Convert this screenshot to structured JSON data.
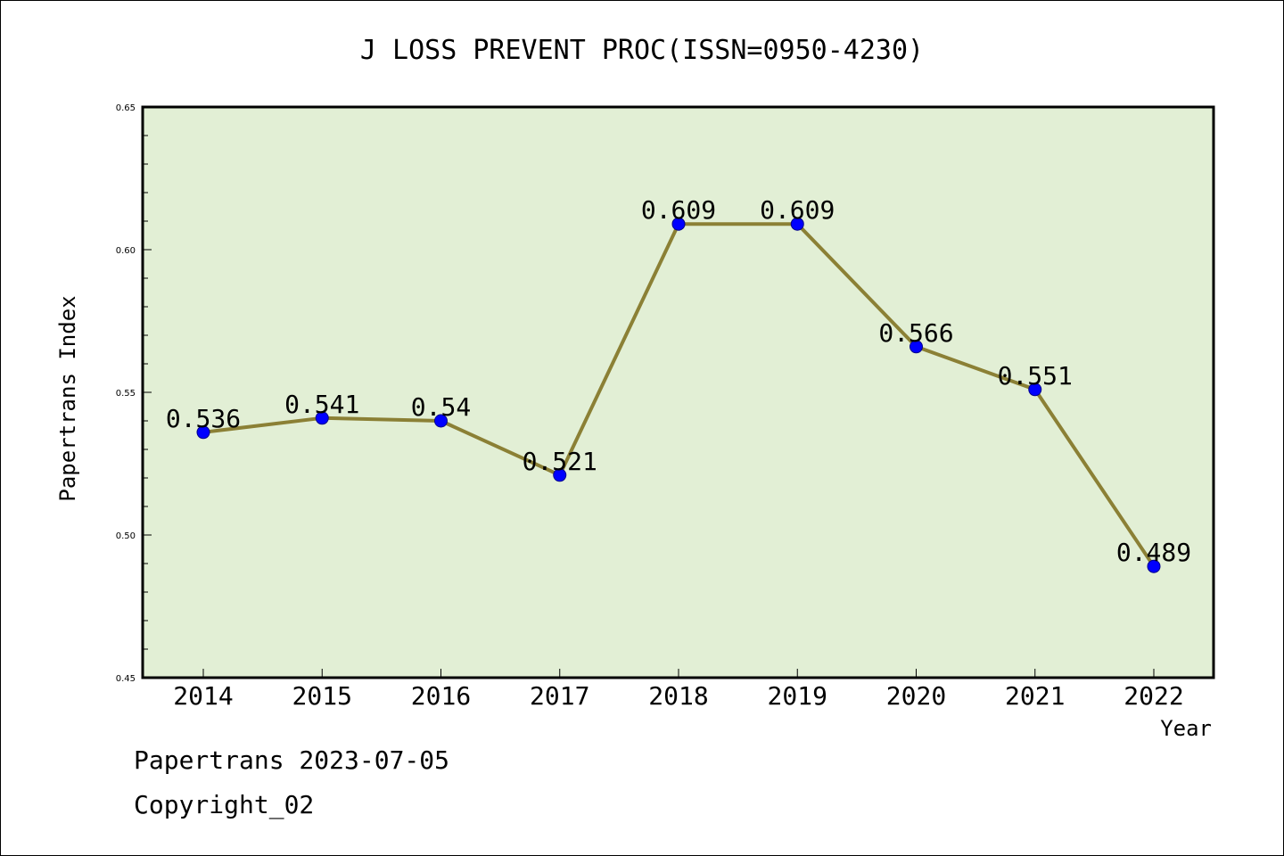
{
  "chart_data": {
    "type": "line",
    "title": "J LOSS PREVENT PROC(ISSN=0950-4230)",
    "xlabel": "Year",
    "ylabel": "Papertrans Index",
    "categories": [
      "2014",
      "2015",
      "2016",
      "2017",
      "2018",
      "2019",
      "2020",
      "2021",
      "2022"
    ],
    "series": [
      {
        "values": [
          0.536,
          0.541,
          0.54,
          0.521,
          0.609,
          0.609,
          0.566,
          0.551,
          0.489
        ],
        "labels": [
          "0.536",
          "0.541",
          "0.54",
          "0.521",
          "0.609",
          "0.609",
          "0.566",
          "0.551",
          "0.489"
        ]
      }
    ],
    "ylim": [
      0.45,
      0.65
    ],
    "yticks": [
      "0.45",
      "0.50",
      "0.55",
      "0.60",
      "0.65"
    ],
    "grid": false,
    "legend": "none",
    "colors": {
      "plot_background": "#e2efd5",
      "line": "#8b8035",
      "marker": "#0000ff",
      "axis": "#000000"
    }
  },
  "footer": {
    "source_line": "Papertrans 2023-07-05",
    "copyright": "Copyright_02"
  }
}
